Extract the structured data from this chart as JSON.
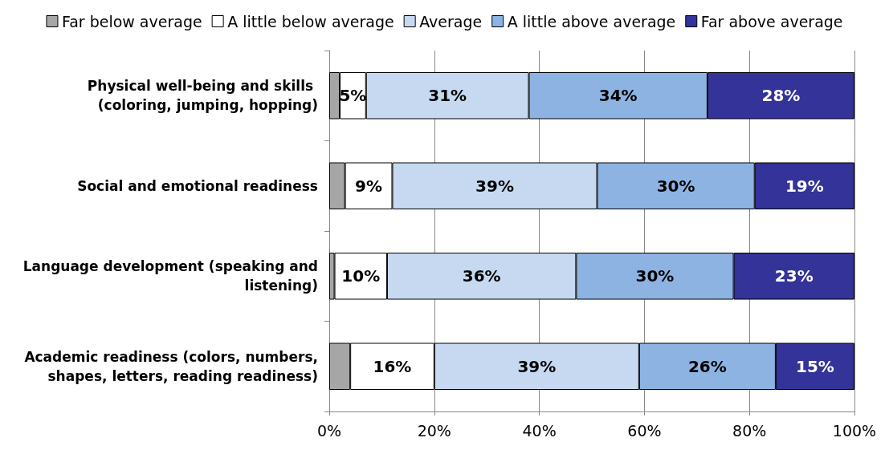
{
  "chart_data": {
    "type": "bar",
    "orientation": "horizontal",
    "stacked": true,
    "categories": [
      "Physical well-being and skills (coloring, jumping, hopping)",
      "Social and emotional readiness",
      "Language development (speaking and listening)",
      "Academic readiness (colors, numbers, shapes, letters, reading readiness)"
    ],
    "series": [
      {
        "name": "Far below average",
        "color": "#a6a6a6",
        "values": [
          2,
          3,
          1,
          4
        ],
        "value_labels": [
          null,
          null,
          null,
          null
        ]
      },
      {
        "name": "A little below average",
        "color": "#ffffff",
        "values": [
          5,
          9,
          10,
          16
        ],
        "value_labels": [
          "5%",
          "9%",
          "10%",
          "16%"
        ]
      },
      {
        "name": "Average",
        "color": "#c6d9f1",
        "values": [
          31,
          39,
          36,
          39
        ],
        "value_labels": [
          "31%",
          "39%",
          "36%",
          "39%"
        ]
      },
      {
        "name": "A little above average",
        "color": "#8db3e2",
        "values": [
          34,
          30,
          30,
          26
        ],
        "value_labels": [
          "34%",
          "30%",
          "30%",
          "26%"
        ]
      },
      {
        "name": "Far above average",
        "color": "#333399",
        "values": [
          28,
          19,
          23,
          15
        ],
        "value_labels": [
          "28%",
          "19%",
          "23%",
          "15%"
        ]
      }
    ],
    "xlim": [
      0,
      100
    ],
    "xticks": [
      {
        "value": 0,
        "label": "0%"
      },
      {
        "value": 20,
        "label": "20%"
      },
      {
        "value": 40,
        "label": "40%"
      },
      {
        "value": 60,
        "label": "60%"
      },
      {
        "value": 80,
        "label": "80%"
      },
      {
        "value": 100,
        "label": "100%"
      }
    ],
    "grid": "x",
    "legend": "top",
    "marker": "square"
  }
}
